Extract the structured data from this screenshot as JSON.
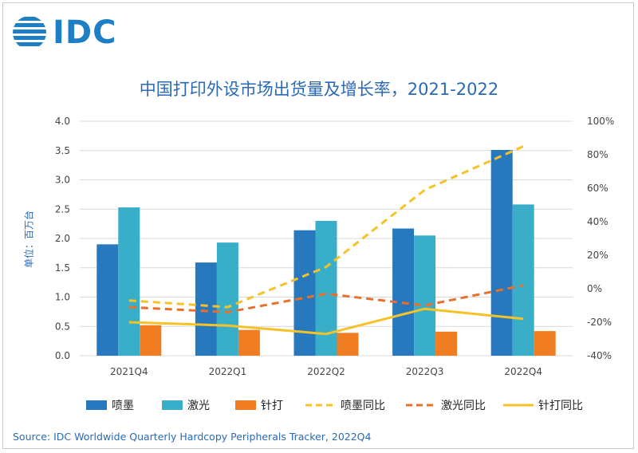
{
  "logo": {
    "text": "IDC"
  },
  "chart_data": {
    "type": "bar",
    "title": "中国打印外设市场出货量及增长率，2021-2022",
    "ylabel": "单位：百万台",
    "categories": [
      "2021Q4",
      "2022Q1",
      "2022Q2",
      "2022Q3",
      "2022Q4"
    ],
    "ylim": [
      0,
      4.0
    ],
    "yticks": [
      "0.0",
      "0.5",
      "1.0",
      "1.5",
      "2.0",
      "2.5",
      "3.0",
      "3.5",
      "4.0"
    ],
    "y2lim": [
      -40,
      100
    ],
    "y2ticks": [
      "-40%",
      "-20%",
      "0%",
      "20%",
      "40%",
      "60%",
      "80%",
      "100%"
    ],
    "bar_series": [
      {
        "name": "喷墨",
        "color": "#2878be",
        "values": [
          1.9,
          1.59,
          2.14,
          2.17,
          3.51
        ]
      },
      {
        "name": "激光",
        "color": "#38aec8",
        "values": [
          2.53,
          1.93,
          2.3,
          2.05,
          2.58
        ]
      },
      {
        "name": "针打",
        "color": "#f07d22",
        "values": [
          0.52,
          0.44,
          0.39,
          0.41,
          0.42
        ]
      }
    ],
    "line_series": [
      {
        "name": "喷墨同比",
        "color": "#f5c327",
        "dash": true,
        "values": [
          -7,
          -11,
          13,
          59,
          85
        ]
      },
      {
        "name": "激光同比",
        "color": "#e8702a",
        "dash": true,
        "values": [
          -11,
          -14,
          -3,
          -10,
          2
        ]
      },
      {
        "name": "针打同比",
        "color": "#f5c327",
        "dash": false,
        "values": [
          -20,
          -22,
          -27,
          -12,
          -18
        ]
      }
    ],
    "grid": true,
    "legend": "bottom"
  },
  "source": "Source:  IDC Worldwide Quarterly Hardcopy Peripherals Tracker, 2022Q4"
}
